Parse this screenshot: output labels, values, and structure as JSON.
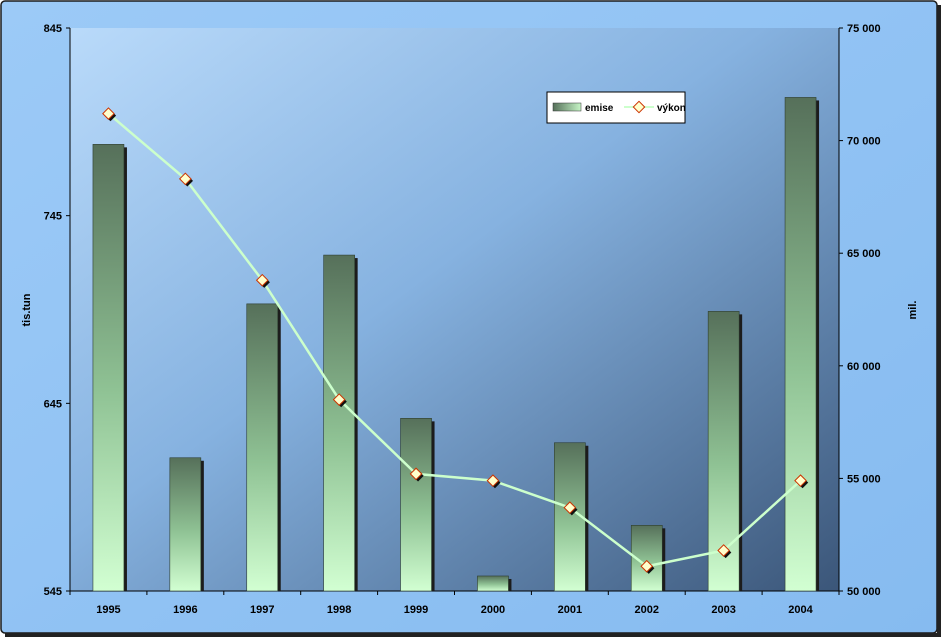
{
  "chart_data": {
    "type": "bar+line",
    "categories": [
      "1995",
      "1996",
      "1997",
      "1998",
      "1999",
      "2000",
      "2001",
      "2002",
      "2003",
      "2004"
    ],
    "series": [
      {
        "name": "emise",
        "type": "bar",
        "axis": "left",
        "values": [
          783,
          616,
          698,
          724,
          637,
          553,
          624,
          580,
          694,
          808
        ]
      },
      {
        "name": "výkon",
        "type": "line",
        "axis": "right",
        "values": [
          71200,
          68300,
          63800,
          58500,
          55200,
          54900,
          53700,
          51100,
          51800,
          54900
        ]
      }
    ],
    "ylabel_left": "tis.tun",
    "ylabel_right": "mil.",
    "ylim_left": [
      545,
      845
    ],
    "ylim_right": [
      50000,
      75000
    ],
    "yticks_left": [
      "845",
      "745",
      "645",
      "545"
    ],
    "yticks_right": [
      "75 000",
      "70 000",
      "65 000",
      "60 000",
      "55 000",
      "50 000"
    ],
    "legend": {
      "placement": "top-right",
      "items": [
        "emise",
        "výkon"
      ]
    },
    "colors": {
      "bar_top": "#56705a",
      "bar_bottom": "#ccffcc",
      "line": "#ccffcc",
      "marker_fill": "#ffffcc",
      "marker_stroke": "#cc3300",
      "outer_bg": "#8fc1f5",
      "plot_bg_light": "#b4d6f8",
      "plot_bg_dark": "#3e5a80"
    },
    "grid": false
  }
}
